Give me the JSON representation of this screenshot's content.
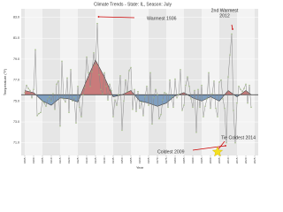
{
  "chart_data": {
    "type": "line",
    "title": "Climate Trends - State: IL, Season: July",
    "y_label": "Temperature (°F)",
    "x_label": "Year",
    "xlim": [
      1893,
      2027
    ],
    "ylim": [
      69.8,
      83.8
    ],
    "xticks": [
      1895,
      1900,
      1905,
      1910,
      1915,
      1920,
      1925,
      1930,
      1935,
      1940,
      1945,
      1950,
      1955,
      1960,
      1965,
      1970,
      1975,
      1980,
      1985,
      1990,
      1995,
      2000,
      2005,
      2010,
      2015,
      2020,
      2025
    ],
    "yticks": [
      {
        "value": 71,
        "label": "71.0"
      },
      {
        "value": 73,
        "label": "73.0"
      },
      {
        "value": 75,
        "label": "75.0"
      },
      {
        "value": 77,
        "label": "77.0"
      },
      {
        "value": 79,
        "label": "79.0"
      },
      {
        "value": 81,
        "label": "81.0"
      },
      {
        "value": 83,
        "label": "83.0"
      }
    ],
    "mean": 75.6,
    "mean_color": "#333333",
    "series": [
      {
        "color": "#888888",
        "x": [
          1895,
          1896,
          1897,
          1898,
          1899,
          1900,
          1901,
          1902,
          1903,
          1904,
          1905,
          1906,
          1907,
          1908,
          1909,
          1910,
          1911,
          1912,
          1913,
          1914,
          1915,
          1916,
          1917,
          1918,
          1919,
          1920,
          1921,
          1922,
          1923,
          1924,
          1925,
          1926,
          1927,
          1928,
          1929,
          1930,
          1931,
          1932,
          1933,
          1934,
          1935,
          1936,
          1937,
          1938,
          1939,
          1940,
          1941,
          1942,
          1943,
          1944,
          1945,
          1946,
          1947,
          1948,
          1949,
          1950,
          1951,
          1952,
          1953,
          1954,
          1955,
          1956,
          1957,
          1958,
          1959,
          1960,
          1961,
          1962,
          1963,
          1964,
          1965,
          1966,
          1967,
          1968,
          1969,
          1970,
          1971,
          1972,
          1973,
          1974,
          1975,
          1976,
          1977,
          1978,
          1979,
          1980,
          1981,
          1982,
          1983,
          1984,
          1985,
          1986,
          1987,
          1988,
          1989,
          1990,
          1991,
          1992,
          1993,
          1994,
          1995,
          1996,
          1997,
          1998,
          1999,
          2000,
          2001,
          2002,
          2003,
          2004,
          2005,
          2006,
          2007,
          2008,
          2009,
          2010,
          2011,
          2012,
          2013,
          2014,
          2015,
          2016,
          2017,
          2018,
          2019,
          2020,
          2021,
          2022,
          2023
        ],
        "values": [
          75.8,
          76.5,
          76.2,
          76.0,
          75.3,
          76.1,
          79.9,
          73.6,
          73.8,
          73.9,
          75.0,
          74.8,
          74.5,
          75.2,
          75.4,
          75.0,
          75.7,
          74.2,
          76.6,
          76.9,
          72.6,
          78.8,
          75.2,
          74.9,
          77.2,
          73.9,
          78.0,
          75.0,
          75.3,
          72.9,
          76.4,
          74.4,
          73.5,
          75.6,
          76.3,
          79.2,
          77.7,
          76.4,
          77.8,
          79.6,
          78.4,
          82.4,
          77.5,
          76.1,
          75.7,
          77.7,
          76.4,
          75.1,
          76.6,
          76.0,
          73.5,
          75.1,
          74.6,
          75.6,
          77.4,
          72.2,
          75.0,
          77.0,
          75.9,
          77.9,
          78.2,
          74.2,
          76.1,
          74.0,
          75.9,
          74.3,
          74.9,
          73.6,
          75.4,
          76.4,
          74.6,
          77.7,
          72.8,
          75.3,
          76.1,
          75.6,
          73.3,
          73.7,
          75.1,
          75.8,
          75.7,
          74.4,
          77.0,
          75.4,
          74.4,
          77.1,
          75.3,
          75.6,
          78.0,
          74.1,
          74.6,
          76.5,
          77.3,
          76.4,
          75.2,
          74.4,
          76.0,
          72.0,
          76.1,
          74.4,
          76.5,
          73.5,
          74.5,
          75.2,
          77.7,
          74.3,
          75.7,
          76.9,
          74.3,
          73.5,
          76.8,
          77.0,
          75.2,
          74.3,
          71.0,
          77.3,
          79.4,
          81.4,
          74.1,
          71.0,
          74.8,
          76.4,
          76.1,
          75.9,
          76.2,
          76.6,
          74.8,
          76.5,
          74.4
        ]
      },
      {
        "color": "#444444",
        "above_color": "#c97b7b",
        "below_color": "#7f9fc0",
        "x": [
          1895,
          1900,
          1905,
          1910,
          1915,
          1920,
          1925,
          1930,
          1935,
          1940,
          1945,
          1950,
          1955,
          1960,
          1965,
          1970,
          1975,
          1980,
          1985,
          1990,
          1995,
          2000,
          2005,
          2010,
          2015,
          2020,
          2023
        ],
        "values": [
          76.0,
          75.8,
          75.0,
          74.6,
          75.3,
          75.2,
          74.9,
          77.0,
          78.9,
          77.3,
          75.4,
          75.6,
          76.0,
          75.0,
          74.8,
          74.5,
          74.8,
          75.5,
          75.8,
          75.3,
          75.0,
          75.4,
          75.0,
          76.0,
          75.4,
          76.0,
          75.6
        ]
      }
    ],
    "annotations": [
      {
        "lines": [
          "Warmest 1936"
        ],
        "color": "#cc0000"
      },
      {
        "lines": [
          "2nd Warmest",
          "2012"
        ],
        "color": "#cc0000"
      },
      {
        "lines": [
          "Coldest 2009"
        ],
        "color": "#cc0000"
      },
      {
        "lines": [
          "Tie Coldest 2014"
        ],
        "color": "#cc0000"
      }
    ]
  }
}
